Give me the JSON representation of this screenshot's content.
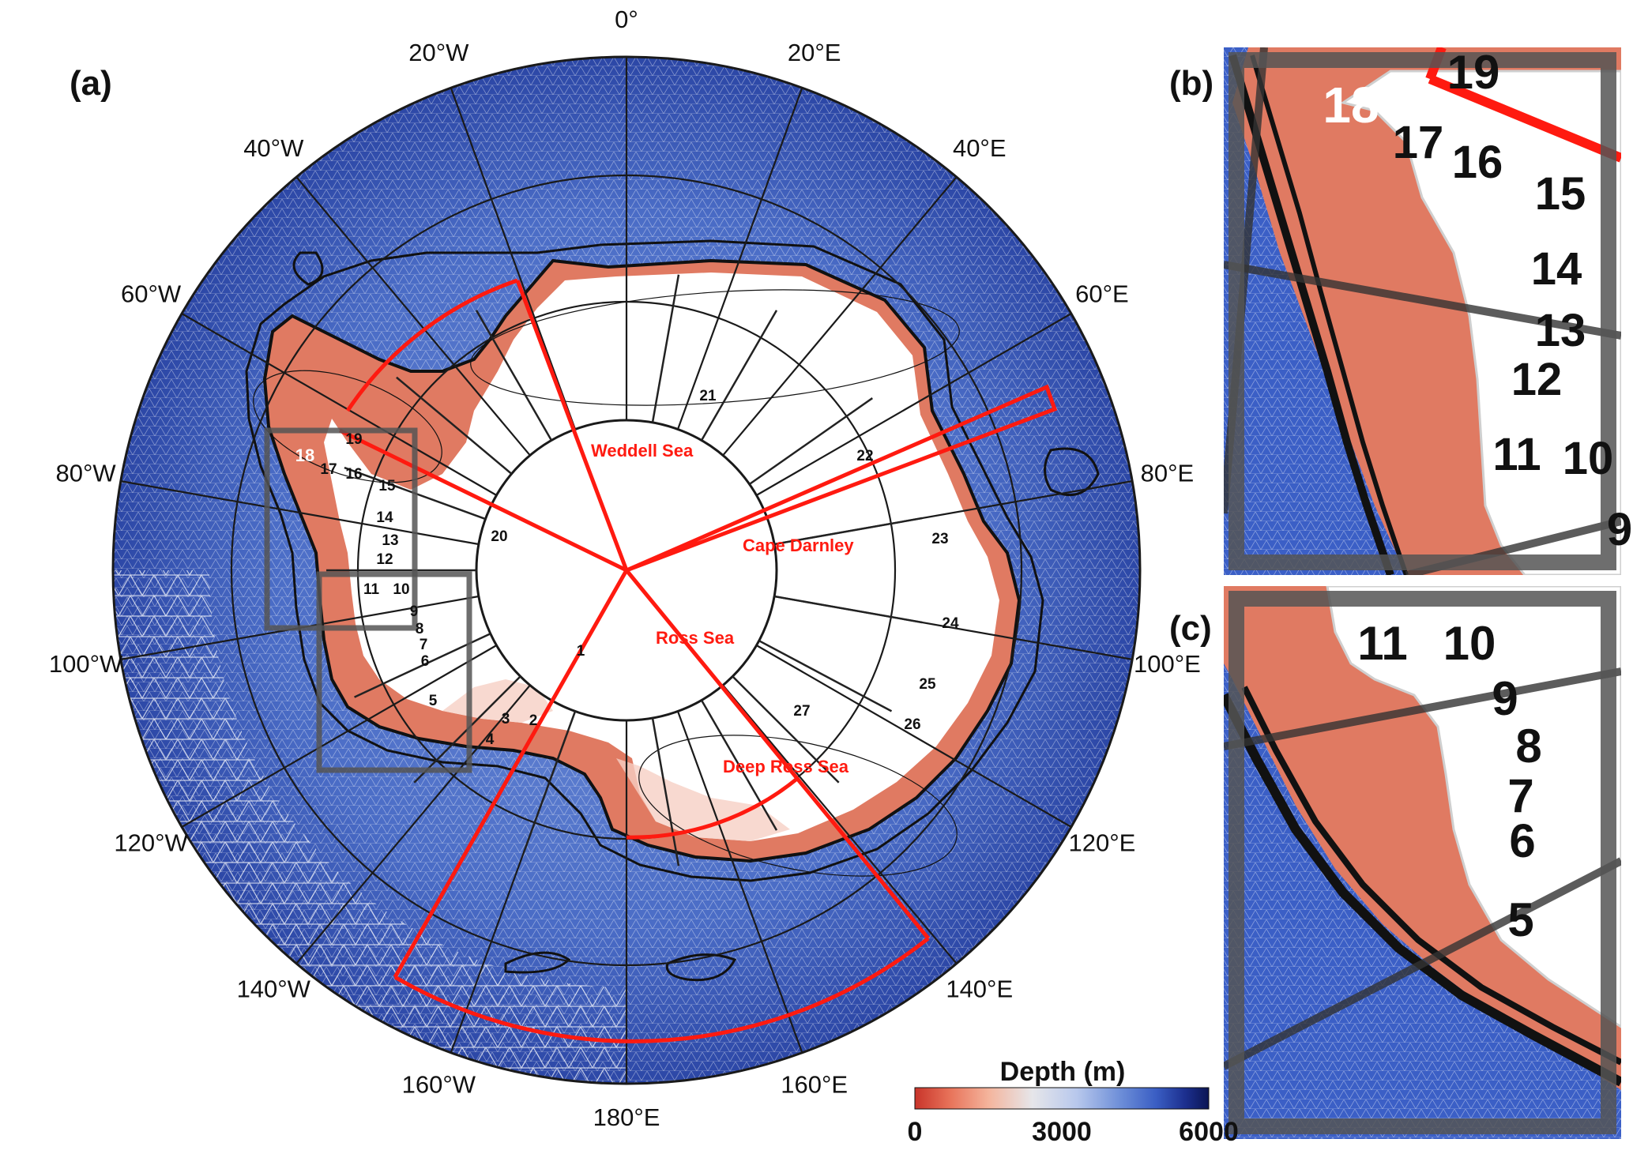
{
  "panels": {
    "a": "(a)",
    "b": "(b)",
    "c": "(c)"
  },
  "longitude_labels": [
    {
      "text": "0°",
      "lon": 0
    },
    {
      "text": "20°E",
      "lon": 20
    },
    {
      "text": "40°E",
      "lon": 40
    },
    {
      "text": "60°E",
      "lon": 60
    },
    {
      "text": "80°E",
      "lon": 80
    },
    {
      "text": "100°E",
      "lon": 100
    },
    {
      "text": "120°E",
      "lon": 120
    },
    {
      "text": "140°E",
      "lon": 140
    },
    {
      "text": "160°E",
      "lon": 160
    },
    {
      "text": "180°E",
      "lon": 180
    },
    {
      "text": "160°W",
      "lon": -160
    },
    {
      "text": "140°W",
      "lon": -140
    },
    {
      "text": "120°W",
      "lon": -120
    },
    {
      "text": "100°W",
      "lon": -100
    },
    {
      "text": "80°W",
      "lon": -80
    },
    {
      "text": "60°W",
      "lon": -60
    },
    {
      "text": "40°W",
      "lon": -40
    },
    {
      "text": "20°W",
      "lon": -20
    }
  ],
  "regions": [
    {
      "name": "Weddell Sea"
    },
    {
      "name": "Cape Darnley"
    },
    {
      "name": "Ross Sea"
    },
    {
      "name": "Deep Ross Sea"
    }
  ],
  "sector_numbers": [
    "1",
    "2",
    "3",
    "4",
    "5",
    "6",
    "7",
    "8",
    "9",
    "10",
    "11",
    "12",
    "13",
    "14",
    "15",
    "16",
    "17",
    "18",
    "19",
    "20",
    "21",
    "22",
    "23",
    "24",
    "25",
    "26",
    "27"
  ],
  "panel_b_numbers": [
    "18",
    "19",
    "17",
    "16",
    "15",
    "14",
    "13",
    "12",
    "11",
    "10",
    "9"
  ],
  "panel_c_numbers": [
    "11",
    "10",
    "9",
    "8",
    "7",
    "6",
    "5"
  ],
  "colorbar": {
    "title": "Depth (m)",
    "ticks": [
      "0",
      "3000",
      "6000"
    ],
    "range": [
      0,
      6000
    ],
    "colors": [
      "#c8342a",
      "#e8735a",
      "#f4b49c",
      "#e6e6ea",
      "#b8c8ec",
      "#6d8ed8",
      "#3a5ec4",
      "#1c2f8e",
      "#0b1554"
    ]
  },
  "colors": {
    "ocean_deep": "#2a48b0",
    "ocean_mid": "#5a7ed4",
    "shelf": "#e07a62",
    "ice": "#ffffff",
    "sector_red": "#ff1a10",
    "grid": "#1a1a1a"
  }
}
